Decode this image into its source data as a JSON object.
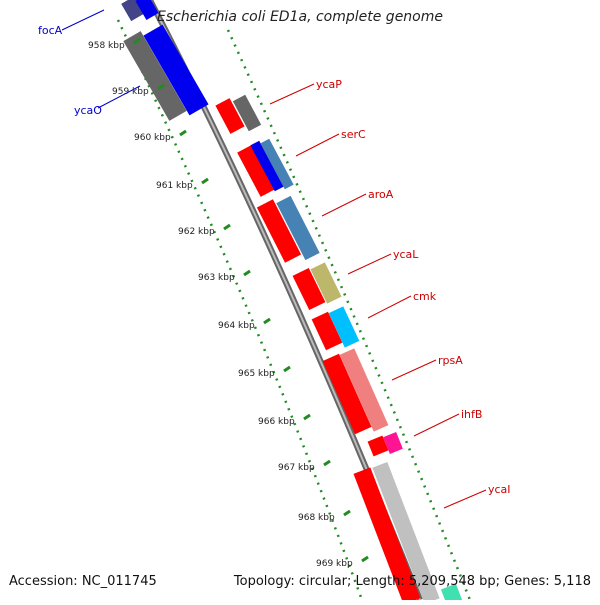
{
  "title": "Escherichia coli ED1a, complete genome",
  "footer": {
    "accession": "Accession: NC_011745",
    "topology": "Topology: circular; Length: 5,209,548 bp; Genes: 5,118"
  },
  "ticks": [
    "958 kbp",
    "959 kbp",
    "960 kbp",
    "961 kbp",
    "962 kbp",
    "963 kbp",
    "964 kbp",
    "965 kbp",
    "966 kbp",
    "967 kbp",
    "968 kbp",
    "969 kbp"
  ],
  "gene_labels": [
    {
      "name": "focA",
      "color": "#0000cc"
    },
    {
      "name": "ycaO",
      "color": "#0000cc"
    },
    {
      "name": "ycaP",
      "color": "#cc0000"
    },
    {
      "name": "serC",
      "color": "#cc0000"
    },
    {
      "name": "aroA",
      "color": "#cc0000"
    },
    {
      "name": "ycaL",
      "color": "#cc0000"
    },
    {
      "name": "cmk",
      "color": "#cc0000"
    },
    {
      "name": "rpsA",
      "color": "#cc0000"
    },
    {
      "name": "ihfB",
      "color": "#cc0000"
    },
    {
      "name": "ycaI",
      "color": "#cc0000"
    }
  ],
  "colors": {
    "axis": "#888888",
    "tick_dots": "#228b22",
    "cds_red": "#ff0000",
    "grey": "#666666",
    "blue": "#0000ee",
    "steelblue": "#4682b4",
    "olive": "#bdb76b",
    "cyan": "#00bfff",
    "salmon": "#f08080",
    "magenta": "#ff1493",
    "lightgrey": "#c0c0c0",
    "teal": "#40e0b0"
  }
}
